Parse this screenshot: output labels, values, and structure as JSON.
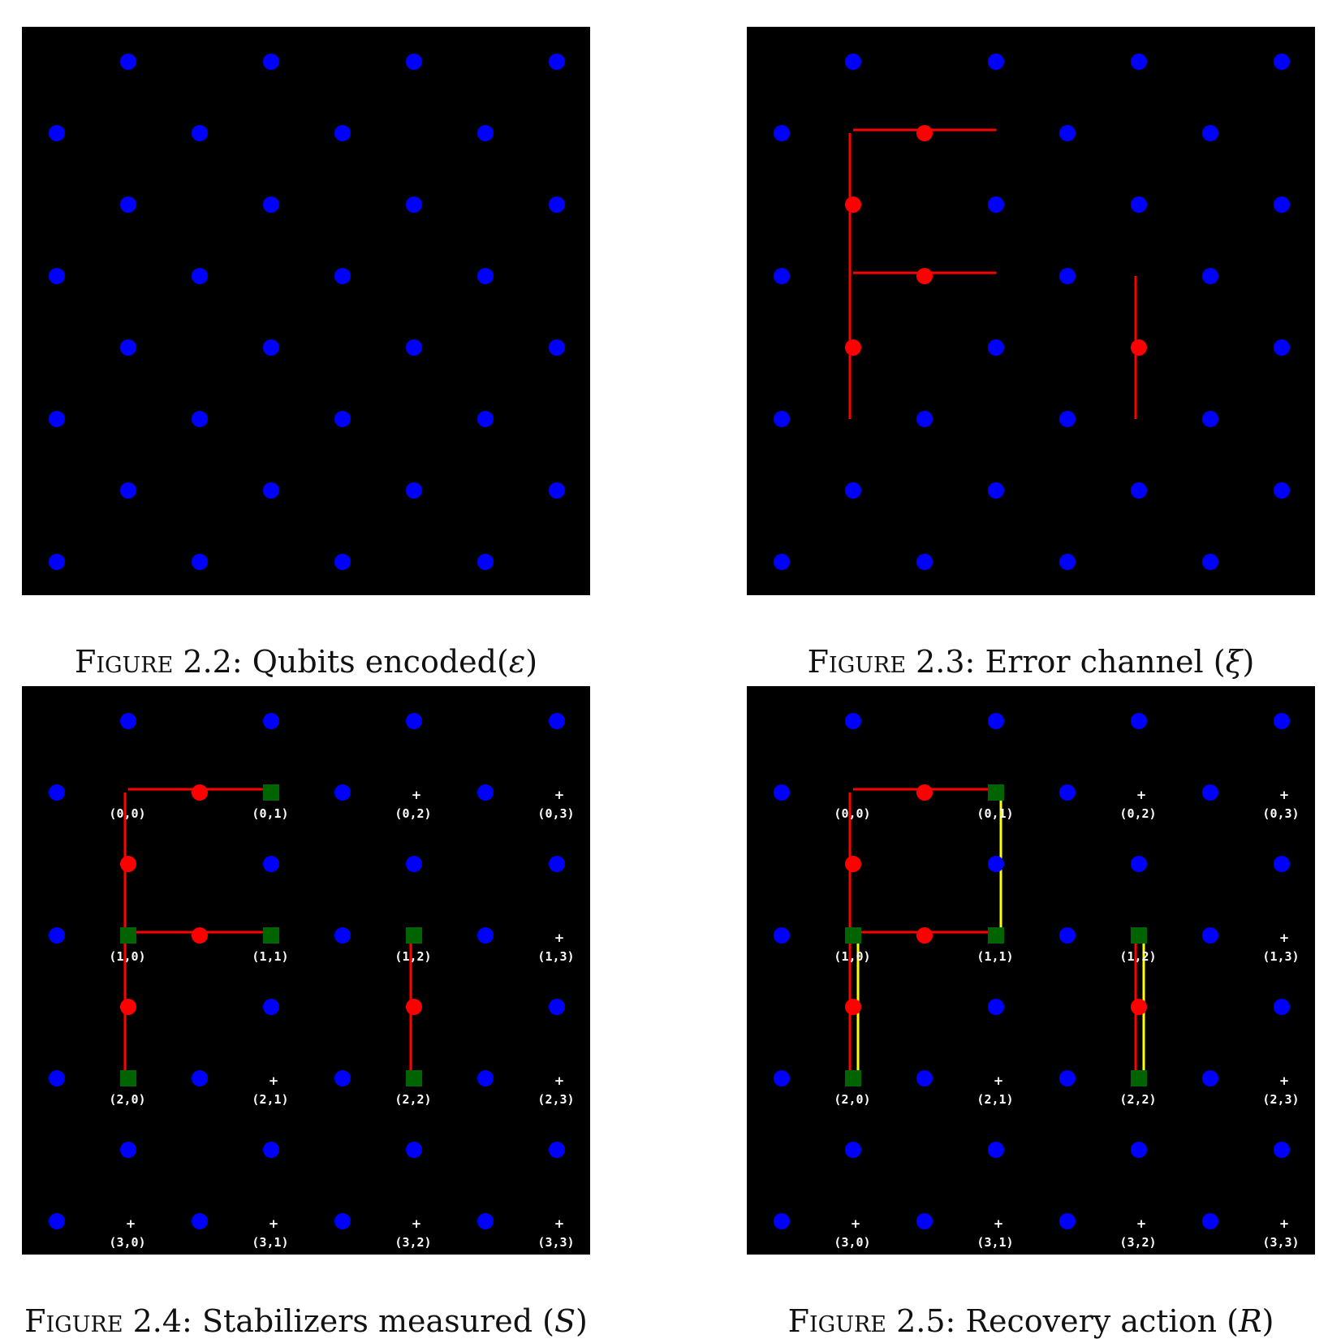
{
  "colors": {
    "background": "#000000",
    "qubit": "#0000ff",
    "error": "#ff0000",
    "stabilizer": "#006400",
    "recovery": "#ffff00",
    "label": "#ffffff"
  },
  "figures": [
    {
      "id": "fig-2-2",
      "label": "Figure 2.2:",
      "text": "Qubits encoded(",
      "symbol": "ε",
      "close": ")",
      "error_qubits": [],
      "error_chains": [],
      "stabilizers": [],
      "recovery_chains": [],
      "show_labels": false
    },
    {
      "id": "fig-2-3",
      "label": "Figure 2.3:",
      "text": "Error channel (",
      "symbol": "ξ",
      "close": ")",
      "error_qubits": [
        [
          1,
          2
        ],
        [
          2,
          1
        ],
        [
          3,
          2
        ],
        [
          4,
          1
        ],
        [
          4,
          5
        ]
      ],
      "error_chains": [
        [
          [
            1,
            1
          ],
          [
            1,
            3
          ]
        ],
        [
          [
            1,
            1
          ],
          [
            5,
            1
          ]
        ],
        [
          [
            3,
            1
          ],
          [
            3,
            3
          ]
        ],
        [
          [
            3,
            5
          ],
          [
            5,
            5
          ]
        ]
      ],
      "stabilizers": [],
      "recovery_chains": [],
      "show_labels": false
    },
    {
      "id": "fig-2-4",
      "label": "Figure 2.4:",
      "text": "Stabilizers measured (",
      "symbol": "S",
      "close": ")",
      "error_qubits": [
        [
          1,
          2
        ],
        [
          2,
          1
        ],
        [
          3,
          2
        ],
        [
          4,
          1
        ],
        [
          4,
          5
        ]
      ],
      "error_chains": [
        [
          [
            1,
            1
          ],
          [
            1,
            3
          ]
        ],
        [
          [
            1,
            1
          ],
          [
            5,
            1
          ]
        ],
        [
          [
            3,
            1
          ],
          [
            3,
            3
          ]
        ],
        [
          [
            3,
            5
          ],
          [
            5,
            5
          ]
        ]
      ],
      "stabilizers": [
        [
          1,
          3
        ],
        [
          3,
          1
        ],
        [
          3,
          3
        ],
        [
          3,
          5
        ],
        [
          5,
          1
        ],
        [
          5,
          5
        ]
      ],
      "recovery_chains": [],
      "show_labels": true
    },
    {
      "id": "fig-2-5",
      "label": "Figure 2.5:",
      "text": "Recovery action (",
      "symbol": "R",
      "close": ")",
      "error_qubits": [
        [
          1,
          2
        ],
        [
          2,
          1
        ],
        [
          3,
          2
        ],
        [
          4,
          1
        ],
        [
          4,
          5
        ]
      ],
      "error_chains": [
        [
          [
            1,
            1
          ],
          [
            1,
            3
          ]
        ],
        [
          [
            1,
            1
          ],
          [
            5,
            1
          ]
        ],
        [
          [
            3,
            1
          ],
          [
            3,
            3
          ]
        ],
        [
          [
            3,
            5
          ],
          [
            5,
            5
          ]
        ]
      ],
      "stabilizers": [
        [
          1,
          3
        ],
        [
          3,
          1
        ],
        [
          3,
          3
        ],
        [
          3,
          5
        ],
        [
          5,
          1
        ],
        [
          5,
          5
        ]
      ],
      "recovery_chains": [
        [
          [
            1,
            3
          ],
          [
            3,
            3
          ]
        ],
        [
          [
            3,
            1
          ],
          [
            5,
            1
          ]
        ],
        [
          [
            3,
            5
          ],
          [
            5,
            5
          ]
        ]
      ],
      "show_labels": true
    }
  ],
  "vertex_labels": [
    [
      "(0,0)",
      "(0,1)",
      "(0,2)",
      "(0,3)"
    ],
    [
      "(1,0)",
      "(1,1)",
      "(1,2)",
      "(1,3)"
    ],
    [
      "(2,0)",
      "(2,1)",
      "(2,2)",
      "(2,3)"
    ],
    [
      "(3,0)",
      "(3,1)",
      "(3,2)",
      "(3,3)"
    ]
  ],
  "plus_marks": [
    [
      1,
      5
    ],
    [
      1,
      7
    ],
    [
      3,
      7
    ],
    [
      5,
      3
    ],
    [
      5,
      7
    ],
    [
      7,
      1
    ],
    [
      7,
      3
    ],
    [
      7,
      5
    ],
    [
      7,
      7
    ]
  ]
}
